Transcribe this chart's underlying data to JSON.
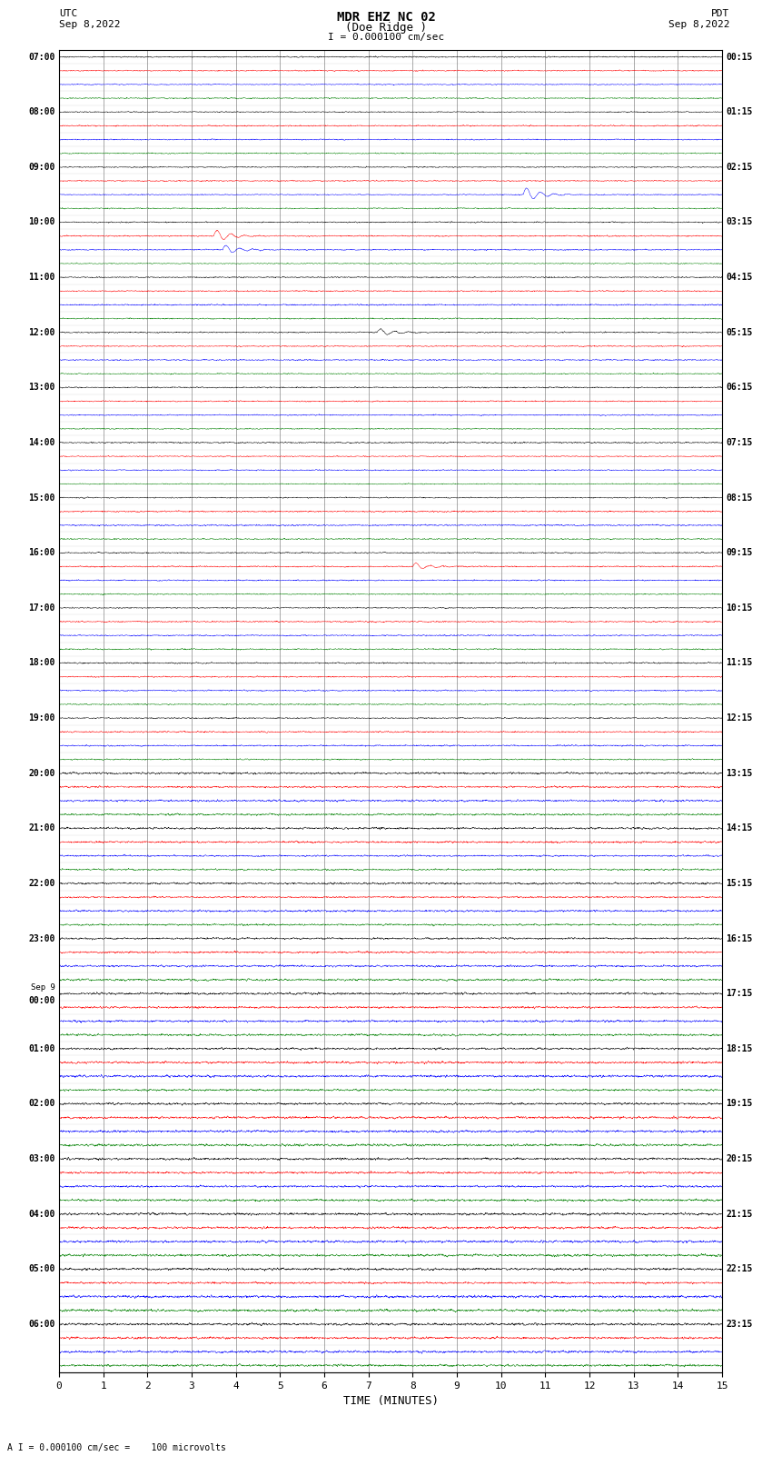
{
  "title_line1": "MDR EHZ NC 02",
  "title_line2": "(Doe Ridge )",
  "scale_label": "I = 0.000100 cm/sec",
  "left_timezone": "UTC",
  "right_timezone": "PDT",
  "left_date": "Sep 8,2022",
  "right_date": "Sep 8,2022",
  "xlabel": "TIME (MINUTES)",
  "bottom_label": "A I = 0.000100 cm/sec =    100 microvolts",
  "xmin": 0,
  "xmax": 15,
  "bg_color": "#ffffff",
  "trace_colors": [
    "black",
    "red",
    "blue",
    "green"
  ],
  "utc_labels": [
    "07:00",
    "08:00",
    "09:00",
    "10:00",
    "11:00",
    "12:00",
    "13:00",
    "14:00",
    "15:00",
    "16:00",
    "17:00",
    "18:00",
    "19:00",
    "20:00",
    "21:00",
    "22:00",
    "23:00",
    "Sep 9\n00:00",
    "01:00",
    "02:00",
    "03:00",
    "04:00",
    "05:00",
    "06:00"
  ],
  "pdt_labels": [
    "00:15",
    "01:15",
    "02:15",
    "03:15",
    "04:15",
    "05:15",
    "06:15",
    "07:15",
    "08:15",
    "09:15",
    "10:15",
    "11:15",
    "12:15",
    "13:15",
    "14:15",
    "15:15",
    "16:15",
    "17:15",
    "18:15",
    "19:15",
    "20:15",
    "21:15",
    "22:15",
    "23:15"
  ],
  "num_hours": 24,
  "traces_per_hour": 4,
  "seed": 42,
  "grid_color": "#888888",
  "grid_linewidth": 0.5
}
